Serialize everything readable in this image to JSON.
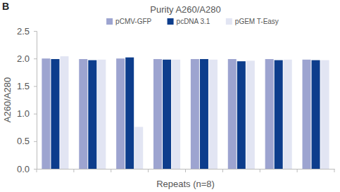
{
  "chart_data": {
    "type": "bar",
    "title": "Purity A260/A280",
    "annotations": [
      "B"
    ],
    "x_label": "Repeats (n=8)",
    "y_label": "A260/A280",
    "categories": [
      null,
      null,
      null,
      null,
      null,
      null,
      null,
      null
    ],
    "series": [
      {
        "name": "pCMV-GFP",
        "color": "#9da4d0",
        "values": [
          2.0,
          1.99,
          2.0,
          1.99,
          1.99,
          1.99,
          1.99,
          1.98
        ]
      },
      {
        "name": "pcDNA 3.1",
        "color": "#0d3d8c",
        "values": [
          1.99,
          1.97,
          2.02,
          1.98,
          1.99,
          1.95,
          1.97,
          1.97
        ]
      },
      {
        "name": "pGEM T-Easy",
        "color": "#e2e5f3",
        "values": [
          2.04,
          1.98,
          0.76,
          1.98,
          1.98,
          1.96,
          1.98,
          1.97
        ]
      }
    ],
    "ylim": [
      0,
      2.5
    ],
    "yticks": [
      {
        "value": 0,
        "label": "0.0"
      },
      0.5,
      {
        "value": 1,
        "label": "1.0"
      },
      1.5,
      {
        "value": 2,
        "label": "2.0"
      },
      2.5
    ],
    "grid": false,
    "legend": "top"
  }
}
